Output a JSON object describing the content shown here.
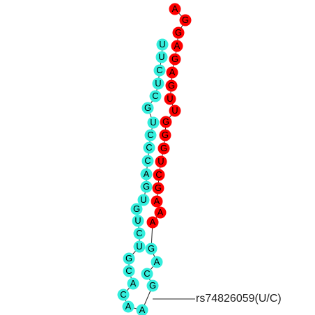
{
  "structure": {
    "colors": {
      "strand_5p": "#ff0000",
      "strand_3p": "#33eedd",
      "backbone": "#222222"
    },
    "strand_5p": [
      "A",
      "G",
      "G",
      "A",
      "G",
      "A",
      "G",
      "U",
      "U",
      "G",
      "G",
      "G",
      "U",
      "C",
      "G",
      "A",
      "A",
      "A"
    ],
    "loop": [
      "G",
      "A",
      "C",
      "G",
      "A",
      "A",
      "C"
    ],
    "strand_3p": [
      "A",
      "C",
      "G",
      "U",
      "C",
      "U",
      "G",
      "U",
      "G",
      "A",
      "C",
      "C",
      "C",
      "U",
      "G",
      "C",
      "U",
      "C",
      "U",
      "U"
    ],
    "annotation": {
      "label": "rs74826059(U/C)"
    }
  }
}
